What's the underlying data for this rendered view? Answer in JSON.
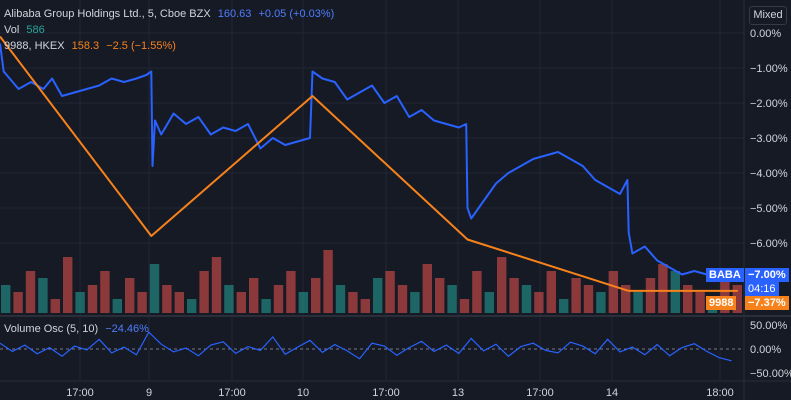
{
  "chart": {
    "symbol_line": "Alibaba Group Holdings Ltd., 5, Cboe BZX",
    "symbol_price": "160.63",
    "symbol_change": "+0.05 (+0.03%)",
    "vol_label": "Vol",
    "vol_value": "586",
    "compare_label": "9988, HKEX",
    "compare_price": "158.3",
    "compare_change": "−2.5 (−1.55%)",
    "scale_mode": "Mixed",
    "osc_label": "Volume Osc (5, 10)",
    "osc_value": "−24.46%",
    "baba_tag": "BABA",
    "baba_value": "−7.00%",
    "baba_countdown": "04:16",
    "hk_tag": "9988",
    "hk_value": "−7.37%"
  },
  "chart_data": {
    "type": "line",
    "x_ticks": [
      "17:00",
      "9",
      "17:00",
      "10",
      "17:00",
      "13",
      "17:00",
      "14",
      "18:00"
    ],
    "y_ticks": [
      "0.00%",
      "−1.00%",
      "−2.00%",
      "−3.00%",
      "−4.00%",
      "−5.00%",
      "−6.00%"
    ],
    "osc_y_ticks": [
      "50.00%",
      "0.00%",
      "−50.00%"
    ],
    "series": [
      {
        "name": "BABA",
        "color": "#2962ff",
        "values": [
          [
            0,
            -0.3
          ],
          [
            0.3,
            -1.1
          ],
          [
            1.5,
            -1.6
          ],
          [
            2.5,
            -1.4
          ],
          [
            3.5,
            -1.6
          ],
          [
            4.2,
            -1.3
          ],
          [
            5,
            -1.8
          ],
          [
            6,
            -1.7
          ],
          [
            7,
            -1.6
          ],
          [
            8,
            -1.5
          ],
          [
            9,
            -1.3
          ],
          [
            10,
            -1.4
          ],
          [
            11,
            -1.3
          ],
          [
            11.8,
            -1.2
          ],
          [
            12.2,
            -1.1
          ],
          [
            12.3,
            -3.8
          ],
          [
            12.5,
            -2.5
          ],
          [
            13,
            -2.9
          ],
          [
            14,
            -2.3
          ],
          [
            15,
            -2.6
          ],
          [
            16,
            -2.4
          ],
          [
            17,
            -2.9
          ],
          [
            18,
            -2.7
          ],
          [
            19,
            -2.8
          ],
          [
            20,
            -2.6
          ],
          [
            21,
            -3.3
          ],
          [
            22,
            -3.0
          ],
          [
            23,
            -3.2
          ],
          [
            24,
            -3.1
          ],
          [
            25,
            -3.0
          ],
          [
            25.2,
            -1.1
          ],
          [
            26,
            -1.3
          ],
          [
            27,
            -1.4
          ],
          [
            28,
            -1.9
          ],
          [
            29,
            -1.7
          ],
          [
            30,
            -1.5
          ],
          [
            31,
            -2.0
          ],
          [
            32,
            -1.8
          ],
          [
            33,
            -2.4
          ],
          [
            34,
            -2.2
          ],
          [
            35,
            -2.5
          ],
          [
            36,
            -2.6
          ],
          [
            37,
            -2.7
          ],
          [
            37.6,
            -2.6
          ],
          [
            37.7,
            -5.0
          ],
          [
            38,
            -5.3
          ],
          [
            39,
            -4.8
          ],
          [
            40,
            -4.3
          ],
          [
            41,
            -4.0
          ],
          [
            42,
            -3.8
          ],
          [
            43,
            -3.6
          ],
          [
            44,
            -3.5
          ],
          [
            45,
            -3.4
          ],
          [
            46,
            -3.6
          ],
          [
            47,
            -3.8
          ],
          [
            48,
            -4.2
          ],
          [
            49,
            -4.4
          ],
          [
            50,
            -4.6
          ],
          [
            50.6,
            -4.2
          ],
          [
            50.7,
            -5.7
          ],
          [
            51,
            -6.3
          ],
          [
            52,
            -6.1
          ],
          [
            53,
            -6.5
          ],
          [
            54,
            -6.7
          ],
          [
            55,
            -6.9
          ],
          [
            56,
            -6.8
          ],
          [
            57,
            -6.9
          ],
          [
            58,
            -7.0
          ],
          [
            59,
            -7.0
          ],
          [
            59.5,
            -7.0
          ]
        ]
      },
      {
        "name": "9988",
        "color": "#f7821b",
        "values": [
          [
            0,
            -0.1
          ],
          [
            12.2,
            -5.8
          ],
          [
            25.2,
            -1.8
          ],
          [
            37.7,
            -5.9
          ],
          [
            50.7,
            -7.37
          ],
          [
            59.5,
            -7.37
          ]
        ]
      }
    ],
    "volume": [
      4,
      3,
      6,
      5,
      2,
      8,
      3,
      4,
      6,
      2,
      5,
      3,
      7,
      4,
      3,
      2,
      6,
      8,
      4,
      3,
      5,
      2,
      4,
      6,
      3,
      5,
      9,
      4,
      3,
      2,
      5,
      6,
      4,
      3,
      7,
      5,
      4,
      2,
      6,
      3,
      8,
      5,
      4,
      3,
      6,
      2,
      5,
      4,
      3,
      6,
      4,
      3,
      5,
      7,
      6,
      4,
      3,
      2,
      5,
      4
    ],
    "oscillator": [
      12,
      -5,
      8,
      -10,
      3,
      -15,
      6,
      -2,
      20,
      -8,
      4,
      -12,
      35,
      10,
      -6,
      2,
      -14,
      8,
      15,
      -9,
      5,
      -3,
      25,
      -11,
      4,
      18,
      -7,
      9,
      -4,
      -20,
      12,
      6,
      -13,
      3,
      16,
      -5,
      8,
      -9,
      22,
      -4,
      10,
      -15,
      5,
      12,
      -3,
      -8,
      14,
      6,
      -10,
      20,
      -6,
      4,
      -12,
      9,
      -14,
      3,
      11,
      -5,
      -18,
      -24.46
    ]
  }
}
